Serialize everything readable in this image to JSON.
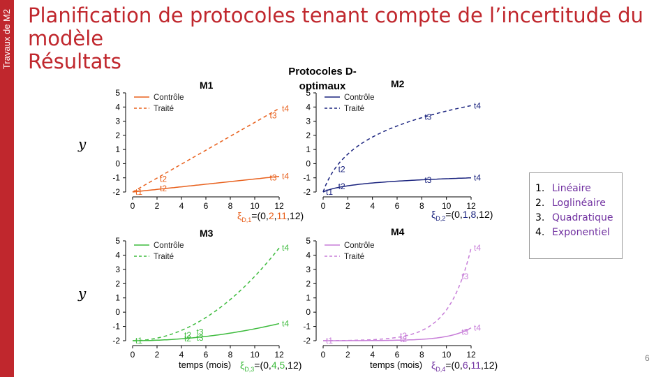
{
  "sidebar": {
    "label": "Travaux de M2"
  },
  "header": {
    "title_line1": "Planification de protocoles tenant compte de l’incertitude du",
    "title_line2": "modèle",
    "title_line3": "Résultats",
    "subtitle": "Protocoles D-optimaux"
  },
  "colors": {
    "brand_red": "#c0272d",
    "m1": "#e8601c",
    "m2": "#1a237e",
    "m3": "#3dbb3d",
    "m4": "#c77dd8",
    "text_purple": "#7030a0"
  },
  "panels": [
    {
      "title": "M1",
      "y_label": "y",
      "legend_control": "Contrôle",
      "legend_treated": "Traité",
      "design_prefix": "ξ",
      "design_sub": "D,1",
      "design_open": "=(0,",
      "t2": "2",
      "comma1": ",",
      "t3": "11",
      "design_close": ",12)"
    },
    {
      "title": "M2",
      "y_label": "",
      "legend_control": "Contrôle",
      "legend_treated": "Traité",
      "design_prefix": "ξ",
      "design_sub": "D,2",
      "design_open": "=(0,",
      "t2": "1",
      "comma1": ",",
      "t3": "8",
      "design_close": ",12)"
    },
    {
      "title": "M3",
      "y_label": "y",
      "legend_control": "Contrôle",
      "legend_treated": "Traité",
      "design_prefix": "ξ",
      "design_sub": "D,3",
      "design_open": "=(0,",
      "t2": "4",
      "comma1": ",",
      "t3": "5",
      "design_close": ",12)"
    },
    {
      "title": "M4",
      "y_label": "",
      "legend_control": "Contrôle",
      "legend_treated": "Traité",
      "design_prefix": "ξ",
      "design_sub": "D,4",
      "design_open": "=(0,",
      "t2": "6",
      "comma1": ",",
      "t3": "11",
      "design_close": ",12)"
    }
  ],
  "x_axis_label": "temps (mois)",
  "model_list": [
    {
      "num": "1.",
      "name": "Linéaire"
    },
    {
      "num": "2.",
      "name": "Loglinéaire"
    },
    {
      "num": "3.",
      "name": "Quadratique"
    },
    {
      "num": "4.",
      "name": "Exponentiel"
    }
  ],
  "page_number": "6",
  "chart_data": [
    {
      "type": "line",
      "title": "M1",
      "xlabel": "",
      "ylabel": "y",
      "xlim": [
        0,
        12
      ],
      "ylim": [
        -2,
        5
      ],
      "x_ticks": [
        0,
        2,
        4,
        6,
        8,
        10,
        12
      ],
      "y_ticks": [
        -2,
        -1,
        0,
        1,
        2,
        3,
        4,
        5
      ],
      "color": "#e8601c",
      "series": [
        {
          "name": "Contrôle",
          "style": "solid",
          "model": "linear",
          "x": [
            0,
            2,
            11,
            12
          ],
          "y": [
            -2,
            -1.75,
            -1.0,
            -0.9
          ]
        },
        {
          "name": "Traité",
          "style": "dashed",
          "model": "linear",
          "x": [
            0,
            2,
            11,
            12
          ],
          "y": [
            -2,
            -1.1,
            3.4,
            3.9
          ]
        }
      ],
      "point_labels": [
        {
          "text": "t1",
          "x": 0,
          "y": -2
        },
        {
          "text": "t2",
          "x": 2,
          "y": -1.75
        },
        {
          "text": "t2",
          "x": 2,
          "y": -1.1
        },
        {
          "text": "t3",
          "x": 11,
          "y": -1.0
        },
        {
          "text": "t3",
          "x": 11,
          "y": 3.4
        },
        {
          "text": "t4",
          "x": 12,
          "y": -0.9
        },
        {
          "text": "t4",
          "x": 12,
          "y": 3.9
        }
      ]
    },
    {
      "type": "line",
      "title": "M2",
      "xlabel": "",
      "ylabel": "",
      "xlim": [
        0,
        12
      ],
      "ylim": [
        -2,
        5
      ],
      "x_ticks": [
        0,
        2,
        4,
        6,
        8,
        10,
        12
      ],
      "y_ticks": [
        -2,
        -1,
        0,
        1,
        2,
        3,
        4,
        5
      ],
      "color": "#1a237e",
      "series": [
        {
          "name": "Contrôle",
          "style": "solid",
          "model": "loglinear",
          "x": [
            0,
            1,
            8,
            12
          ],
          "y": [
            -2,
            -1.6,
            -1.15,
            -1.0
          ]
        },
        {
          "name": "Traité",
          "style": "dashed",
          "model": "loglinear",
          "x": [
            0,
            1,
            8,
            12
          ],
          "y": [
            -2,
            -0.4,
            3.3,
            4.1
          ]
        }
      ],
      "point_labels": [
        {
          "text": "t1",
          "x": 0,
          "y": -2
        },
        {
          "text": "t2",
          "x": 1,
          "y": -1.6
        },
        {
          "text": "t2",
          "x": 1,
          "y": -0.4
        },
        {
          "text": "t3",
          "x": 8,
          "y": -1.15
        },
        {
          "text": "t3",
          "x": 8,
          "y": 3.3
        },
        {
          "text": "t4",
          "x": 12,
          "y": -1.0
        },
        {
          "text": "t4",
          "x": 12,
          "y": 4.1
        }
      ]
    },
    {
      "type": "line",
      "title": "M3",
      "xlabel": "",
      "ylabel": "y",
      "xlim": [
        0,
        12
      ],
      "ylim": [
        -2,
        5
      ],
      "x_ticks": [
        0,
        2,
        4,
        6,
        8,
        10,
        12
      ],
      "y_ticks": [
        -2,
        -1,
        0,
        1,
        2,
        3,
        4,
        5
      ],
      "color": "#3dbb3d",
      "series": [
        {
          "name": "Contrôle",
          "style": "solid",
          "model": "quadratic",
          "x": [
            0,
            4,
            5,
            12
          ],
          "y": [
            -2,
            -1.85,
            -1.8,
            -0.8
          ]
        },
        {
          "name": "Traité",
          "style": "dashed",
          "model": "quadratic",
          "x": [
            0,
            4,
            5,
            12
          ],
          "y": [
            -2,
            -1.6,
            -1.4,
            4.5
          ]
        }
      ],
      "point_labels": [
        {
          "text": "t1",
          "x": 0,
          "y": -2
        },
        {
          "text": "t2",
          "x": 4,
          "y": -1.85
        },
        {
          "text": "t2",
          "x": 4,
          "y": -1.6
        },
        {
          "text": "t3",
          "x": 5,
          "y": -1.8
        },
        {
          "text": "t3",
          "x": 5,
          "y": -1.4
        },
        {
          "text": "t4",
          "x": 12,
          "y": -0.8
        },
        {
          "text": "t4",
          "x": 12,
          "y": 4.5
        }
      ]
    },
    {
      "type": "line",
      "title": "M4",
      "xlabel": "temps (mois)",
      "ylabel": "",
      "xlim": [
        0,
        12
      ],
      "ylim": [
        -2,
        5
      ],
      "x_ticks": [
        0,
        2,
        4,
        6,
        8,
        10,
        12
      ],
      "y_ticks": [
        -2,
        -1,
        0,
        1,
        2,
        3,
        4,
        5
      ],
      "color": "#c77dd8",
      "series": [
        {
          "name": "Contrôle",
          "style": "solid",
          "model": "exponential",
          "x": [
            0,
            6,
            11,
            12
          ],
          "y": [
            -2,
            -1.9,
            -1.4,
            -1.1
          ]
        },
        {
          "name": "Traité",
          "style": "dashed",
          "model": "exponential",
          "x": [
            0,
            6,
            11,
            12
          ],
          "y": [
            -2,
            -1.65,
            2.5,
            4.5
          ]
        }
      ],
      "point_labels": [
        {
          "text": "t1",
          "x": 0,
          "y": -2
        },
        {
          "text": "t2",
          "x": 6,
          "y": -1.9
        },
        {
          "text": "t2",
          "x": 6,
          "y": -1.65
        },
        {
          "text": "t3",
          "x": 11,
          "y": -1.4
        },
        {
          "text": "t3",
          "x": 11,
          "y": 2.5
        },
        {
          "text": "t4",
          "x": 12,
          "y": -1.1
        },
        {
          "text": "t4",
          "x": 12,
          "y": 4.5
        }
      ]
    }
  ]
}
